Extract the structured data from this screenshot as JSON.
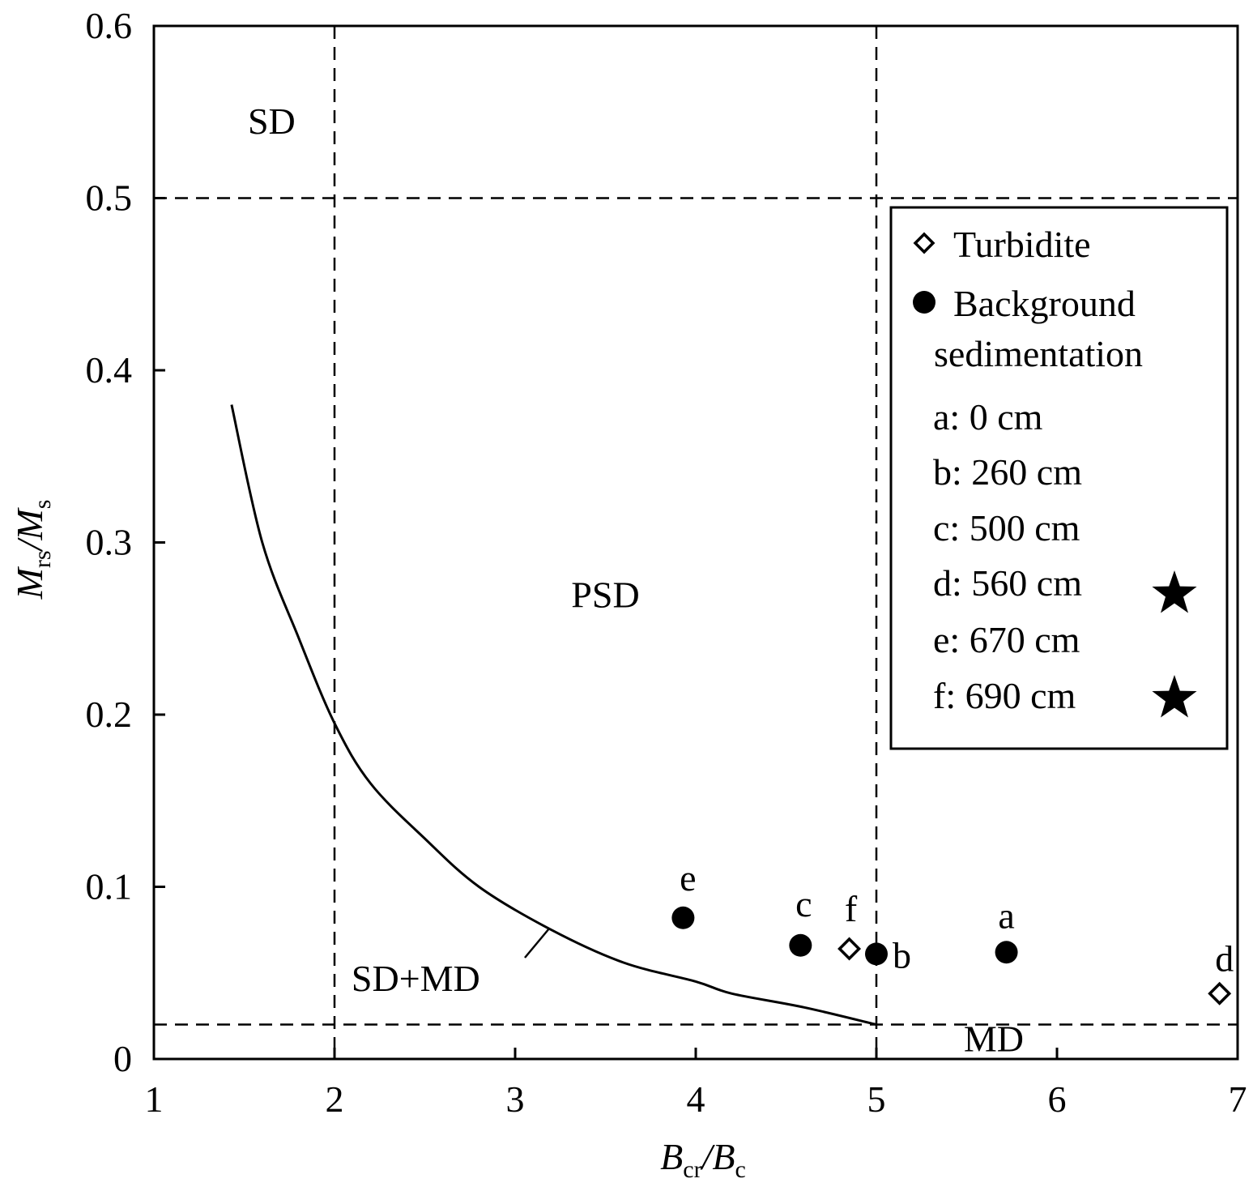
{
  "chart_data": {
    "type": "scatter",
    "title": "",
    "xlabel": {
      "main": "B",
      "main_sub": "cr",
      "sep": "/",
      "denom": "B",
      "denom_sub": "c"
    },
    "ylabel": {
      "main": "M",
      "main_sub": "rs",
      "sep": "/",
      "denom": "M",
      "denom_sub": "s"
    },
    "xlim": [
      1,
      7
    ],
    "ylim": [
      0,
      0.6
    ],
    "xticks": [
      1,
      2,
      3,
      4,
      5,
      6,
      7
    ],
    "xtick_labels": [
      "1",
      "2",
      "3",
      "4",
      "5",
      "6",
      "7"
    ],
    "yticks": [
      0,
      0.1,
      0.2,
      0.3,
      0.4,
      0.5,
      0.6
    ],
    "ytick_labels": [
      "0",
      "0.1",
      "0.2",
      "0.3",
      "0.4",
      "0.5",
      "0.6"
    ],
    "boundary_lines": [
      {
        "orientation": "vertical",
        "x": 2
      },
      {
        "orientation": "vertical",
        "x": 5
      },
      {
        "orientation": "horizontal",
        "y": 0.5
      },
      {
        "orientation": "horizontal",
        "y": 0.02
      }
    ],
    "mixing_curve": {
      "name": "SD+MD",
      "points": [
        [
          1.43,
          0.38
        ],
        [
          1.6,
          0.3
        ],
        [
          1.8,
          0.245
        ],
        [
          2.0,
          0.195
        ],
        [
          2.2,
          0.16
        ],
        [
          2.5,
          0.128
        ],
        [
          2.8,
          0.1
        ],
        [
          3.2,
          0.075
        ],
        [
          3.6,
          0.056
        ],
        [
          4.0,
          0.045
        ],
        [
          4.2,
          0.038
        ],
        [
          4.6,
          0.03
        ],
        [
          5.0,
          0.02
        ]
      ]
    },
    "regions": [
      {
        "label": "SD",
        "x": 1.52,
        "y": 0.545
      },
      {
        "label": "PSD",
        "x": 3.5,
        "y": 0.27
      },
      {
        "label": "SD+MD",
        "x": 2.45,
        "y": 0.047
      },
      {
        "label": "MD",
        "x": 5.65,
        "y": 0.012
      }
    ],
    "series": [
      {
        "name": "Turbidite",
        "marker": "diamond-open",
        "points": [
          {
            "label": "d",
            "x": 6.9,
            "y": 0.038
          },
          {
            "label": "f",
            "x": 4.85,
            "y": 0.064
          }
        ]
      },
      {
        "name": "Background sedimentation",
        "marker": "circle-filled",
        "points": [
          {
            "label": "a",
            "x": 5.72,
            "y": 0.062
          },
          {
            "label": "b",
            "x": 5.0,
            "y": 0.061
          },
          {
            "label": "c",
            "x": 4.58,
            "y": 0.066
          },
          {
            "label": "e",
            "x": 3.93,
            "y": 0.082
          }
        ]
      }
    ],
    "legend": {
      "position": "right",
      "entries": [
        {
          "marker": "diamond-open",
          "lines": [
            "Turbidite"
          ]
        },
        {
          "marker": "circle-filled",
          "lines": [
            "Background",
            "sedimentation"
          ]
        }
      ],
      "samples": [
        {
          "text": "a: 0 cm",
          "star": false
        },
        {
          "text": "b: 260 cm",
          "star": false
        },
        {
          "text": "c: 500 cm",
          "star": false
        },
        {
          "text": "d: 560 cm",
          "star": true
        },
        {
          "text": "e: 670 cm",
          "star": false
        },
        {
          "text": "f: 690 cm",
          "star": true
        }
      ]
    }
  }
}
